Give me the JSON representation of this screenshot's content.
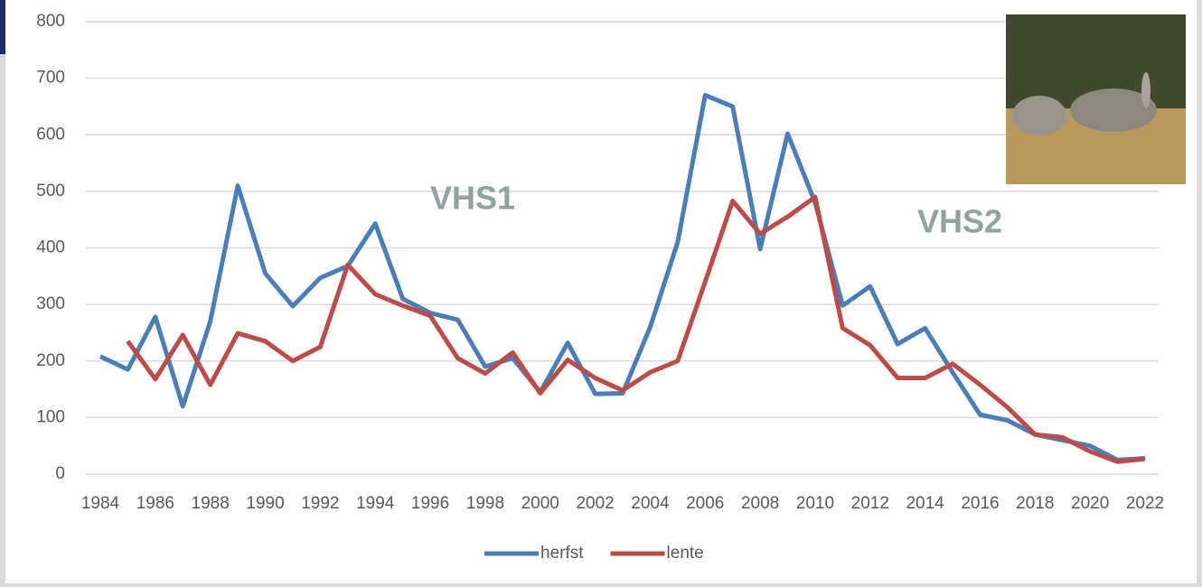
{
  "chart_data": {
    "type": "line",
    "x": [
      1984,
      1985,
      1986,
      1987,
      1988,
      1989,
      1990,
      1991,
      1992,
      1993,
      1994,
      1995,
      1996,
      1997,
      1998,
      1999,
      2000,
      2001,
      2002,
      2003,
      2004,
      2005,
      2006,
      2007,
      2008,
      2009,
      2010,
      2011,
      2012,
      2013,
      2014,
      2015,
      2016,
      2017,
      2018,
      2019,
      2020,
      2021,
      2022
    ],
    "series": [
      {
        "name": "herfst",
        "color": "#4a7ebb",
        "values": [
          208,
          185,
          278,
          120,
          270,
          510,
          355,
          297,
          347,
          368,
          443,
          310,
          285,
          273,
          190,
          205,
          145,
          232,
          142,
          143,
          260,
          410,
          670,
          650,
          398,
          602,
          480,
          298,
          332,
          230,
          258,
          180,
          105,
          95,
          70,
          60,
          50,
          25,
          28
        ]
      },
      {
        "name": "lente",
        "color": "#be4b48",
        "values": [
          null,
          235,
          168,
          246,
          158,
          249,
          235,
          200,
          225,
          370,
          318,
          298,
          280,
          205,
          178,
          215,
          143,
          202,
          170,
          148,
          180,
          200,
          340,
          483,
          425,
          455,
          490,
          258,
          228,
          170,
          170,
          195,
          158,
          118,
          70,
          65,
          40,
          22,
          27
        ]
      }
    ],
    "annotations": [
      "VHS1",
      "VHS2"
    ],
    "xlim": [
      1984,
      2022
    ],
    "xticks": [
      1984,
      1986,
      1988,
      1990,
      1992,
      1994,
      1996,
      1998,
      2000,
      2002,
      2004,
      2006,
      2008,
      2010,
      2012,
      2014,
      2016,
      2018,
      2020,
      2022
    ],
    "ylim": [
      0,
      800
    ],
    "yticks": [
      0,
      100,
      200,
      300,
      400,
      500,
      600,
      700,
      800
    ],
    "grid": true,
    "legend": "bottom"
  }
}
